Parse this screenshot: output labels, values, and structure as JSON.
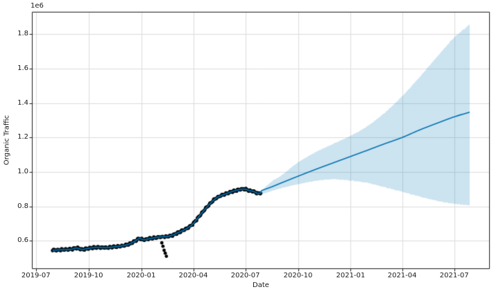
{
  "chart_data": {
    "type": "line",
    "title": "",
    "xlabel": "Date",
    "ylabel": "Organic Traffic",
    "y_axis_offset_label": "1e6",
    "grid": true,
    "legend": "none",
    "xlim": [
      "2019-06-24",
      "2021-08-31"
    ],
    "ylim": [
      440000,
      1930000
    ],
    "x_ticks": [
      {
        "date": "2019-07-01",
        "label": "2019-07"
      },
      {
        "date": "2019-10-01",
        "label": "2019-10"
      },
      {
        "date": "2020-01-01",
        "label": "2020-01"
      },
      {
        "date": "2020-04-01",
        "label": "2020-04"
      },
      {
        "date": "2020-07-01",
        "label": "2020-07"
      },
      {
        "date": "2020-10-01",
        "label": "2020-10"
      },
      {
        "date": "2021-01-01",
        "label": "2021-01"
      },
      {
        "date": "2021-04-01",
        "label": "2021-04"
      },
      {
        "date": "2021-07-01",
        "label": "2021-07"
      }
    ],
    "y_ticks": [
      {
        "value": 600000,
        "label": "0.6"
      },
      {
        "value": 800000,
        "label": "0.8"
      },
      {
        "value": 1000000,
        "label": "1.0"
      },
      {
        "value": 1200000,
        "label": "1.2"
      },
      {
        "value": 1400000,
        "label": "1.4"
      },
      {
        "value": 1600000,
        "label": "1.6"
      },
      {
        "value": 1800000,
        "label": "1.8"
      }
    ],
    "colors": {
      "forecast_line": "#0072B2",
      "uncertainty_band": "rgba(0,114,178,0.2)",
      "observed_points": "#000000",
      "gridline": "#dcdcdc",
      "spine": "#1a1a1a"
    },
    "observed": {
      "name": "observed-daily-organic-traffic",
      "marker_radius_px": 2.4,
      "daily_jitter": 6000,
      "anchors": [
        [
          "2019-07-30",
          545000
        ],
        [
          "2019-08-15",
          548000
        ],
        [
          "2019-09-01",
          551000
        ],
        [
          "2019-09-10",
          558000
        ],
        [
          "2019-09-20",
          550000
        ],
        [
          "2019-10-01",
          556000
        ],
        [
          "2019-10-15",
          562000
        ],
        [
          "2019-11-01",
          560000
        ],
        [
          "2019-11-15",
          565000
        ],
        [
          "2019-12-01",
          572000
        ],
        [
          "2019-12-12",
          582000
        ],
        [
          "2019-12-22",
          600000
        ],
        [
          "2019-12-29",
          613000
        ],
        [
          "2020-01-06",
          606000
        ],
        [
          "2020-01-16",
          613000
        ],
        [
          "2020-01-26",
          618000
        ],
        [
          "2020-02-05",
          623000
        ],
        [
          "2020-02-15",
          625000
        ],
        [
          "2020-02-25",
          633000
        ],
        [
          "2020-03-06",
          648000
        ],
        [
          "2020-03-16",
          663000
        ],
        [
          "2020-03-24",
          678000
        ],
        [
          "2020-04-01",
          700000
        ],
        [
          "2020-04-10",
          737000
        ],
        [
          "2020-04-18",
          770000
        ],
        [
          "2020-04-26",
          800000
        ],
        [
          "2020-05-04",
          828000
        ],
        [
          "2020-05-12",
          850000
        ],
        [
          "2020-05-20",
          863000
        ],
        [
          "2020-06-01",
          878000
        ],
        [
          "2020-06-12",
          890000
        ],
        [
          "2020-06-22",
          898000
        ],
        [
          "2020-06-30",
          900000
        ],
        [
          "2020-07-08",
          892000
        ],
        [
          "2020-07-16",
          886000
        ],
        [
          "2020-07-22",
          876000
        ],
        [
          "2020-07-28",
          878000
        ]
      ],
      "outliers": [
        [
          "2020-02-06",
          588000
        ],
        [
          "2020-02-08",
          568000
        ],
        [
          "2020-02-10",
          545000
        ],
        [
          "2020-02-12",
          528000
        ],
        [
          "2020-02-14",
          510000
        ]
      ]
    },
    "forecast": {
      "name": "prophet-forecast-yhat",
      "yhat_anchors": [
        [
          "2020-07-28",
          890000
        ],
        [
          "2020-08-15",
          912000
        ],
        [
          "2020-09-01",
          935000
        ],
        [
          "2020-10-01",
          975000
        ],
        [
          "2020-11-01",
          1015000
        ],
        [
          "2020-12-01",
          1052000
        ],
        [
          "2021-01-01",
          1090000
        ],
        [
          "2021-02-01",
          1128000
        ],
        [
          "2021-03-01",
          1163000
        ],
        [
          "2021-04-01",
          1200000
        ],
        [
          "2021-05-01",
          1243000
        ],
        [
          "2021-06-01",
          1283000
        ],
        [
          "2021-07-01",
          1320000
        ],
        [
          "2021-07-28",
          1347000
        ]
      ],
      "upper_anchors": [
        [
          "2020-07-28",
          887000
        ],
        [
          "2020-08-15",
          942000
        ],
        [
          "2020-09-01",
          977000
        ],
        [
          "2020-10-01",
          1055000
        ],
        [
          "2020-11-01",
          1115000
        ],
        [
          "2020-12-01",
          1162000
        ],
        [
          "2021-01-01",
          1210000
        ],
        [
          "2021-02-01",
          1270000
        ],
        [
          "2021-03-01",
          1342000
        ],
        [
          "2021-04-01",
          1440000
        ],
        [
          "2021-05-01",
          1550000
        ],
        [
          "2021-06-01",
          1668000
        ],
        [
          "2021-07-01",
          1780000
        ],
        [
          "2021-07-28",
          1857000
        ]
      ],
      "lower_anchors": [
        [
          "2020-07-28",
          869000
        ],
        [
          "2020-08-15",
          888000
        ],
        [
          "2020-09-01",
          905000
        ],
        [
          "2020-10-01",
          928000
        ],
        [
          "2020-11-01",
          948000
        ],
        [
          "2020-12-01",
          957000
        ],
        [
          "2021-01-01",
          950000
        ],
        [
          "2021-02-01",
          935000
        ],
        [
          "2021-03-01",
          912000
        ],
        [
          "2021-04-01",
          885000
        ],
        [
          "2021-05-01",
          858000
        ],
        [
          "2021-06-01",
          832000
        ],
        [
          "2021-07-01",
          815000
        ],
        [
          "2021-07-28",
          805000
        ]
      ],
      "history_band_halfwidth": 9000
    }
  }
}
